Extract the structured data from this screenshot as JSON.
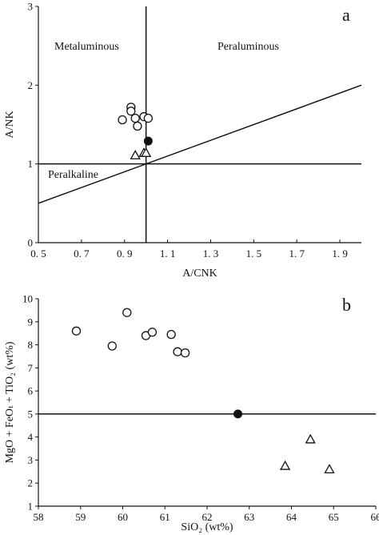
{
  "chart_data": [
    {
      "type": "scatter",
      "panel_label": "a",
      "xlabel": "A/CNK",
      "ylabel": "A/NK",
      "xlim": [
        0.5,
        2.0
      ],
      "ylim": [
        0,
        3
      ],
      "xticks": [
        "0. 5",
        "0. 7",
        "0. 9",
        "1. 1",
        "1. 3",
        "1. 5",
        "1. 7",
        "1. 9"
      ],
      "xtick_values": [
        0.5,
        0.7,
        0.9,
        1.1,
        1.3,
        1.5,
        1.7,
        1.9
      ],
      "yticks": [
        "0",
        "1",
        "2",
        "3"
      ],
      "ytick_values": [
        0,
        1,
        2,
        3
      ],
      "region_labels": [
        "Metaluminous",
        "Peraluminous",
        "Peralkaline"
      ],
      "reference_lines": [
        {
          "kind": "vertical",
          "x": 1.0
        },
        {
          "kind": "horizontal",
          "y": 1.0
        },
        {
          "kind": "line",
          "x1": 0.5,
          "y1": 0.5,
          "x2": 2.0,
          "y2": 2.0
        }
      ],
      "series": [
        {
          "marker": "open-circle",
          "points": [
            [
              0.89,
              1.56
            ],
            [
              0.93,
              1.72
            ],
            [
              0.93,
              1.67
            ],
            [
              0.95,
              1.58
            ],
            [
              0.96,
              1.48
            ],
            [
              0.99,
              1.6
            ],
            [
              1.01,
              1.58
            ]
          ]
        },
        {
          "marker": "filled-circle",
          "points": [
            [
              1.01,
              1.29
            ]
          ]
        },
        {
          "marker": "open-triangle",
          "points": [
            [
              0.95,
              1.11
            ],
            [
              0.99,
              1.14
            ],
            [
              1.0,
              1.14
            ]
          ]
        }
      ],
      "grid": false
    },
    {
      "type": "scatter",
      "panel_label": "b",
      "xlabel": "SiO₂ (wt%)",
      "ylabel": "MgO + FeOₜ + TiO₂ (wt%)",
      "xlim": [
        58,
        66
      ],
      "ylim": [
        1,
        10
      ],
      "xticks": [
        "58",
        "59",
        "60",
        "61",
        "62",
        "63",
        "64",
        "65",
        "66"
      ],
      "xtick_values": [
        58,
        59,
        60,
        61,
        62,
        63,
        64,
        65,
        66
      ],
      "yticks": [
        "1",
        "2",
        "3",
        "4",
        "5",
        "6",
        "7",
        "8",
        "9",
        "10"
      ],
      "ytick_values": [
        1,
        2,
        3,
        4,
        5,
        6,
        7,
        8,
        9,
        10
      ],
      "reference_lines": [
        {
          "kind": "horizontal",
          "y": 5.0
        }
      ],
      "series": [
        {
          "marker": "open-circle",
          "points": [
            [
              58.9,
              8.6
            ],
            [
              59.75,
              7.95
            ],
            [
              60.1,
              9.4
            ],
            [
              60.55,
              8.4
            ],
            [
              60.7,
              8.55
            ],
            [
              61.15,
              8.45
            ],
            [
              61.3,
              7.7
            ],
            [
              61.48,
              7.65
            ]
          ]
        },
        {
          "marker": "filled-circle",
          "points": [
            [
              62.73,
              5.0
            ]
          ]
        },
        {
          "marker": "open-triangle",
          "points": [
            [
              63.85,
              2.75
            ],
            [
              64.45,
              3.9
            ],
            [
              64.9,
              2.6
            ]
          ]
        }
      ],
      "grid": false
    }
  ]
}
